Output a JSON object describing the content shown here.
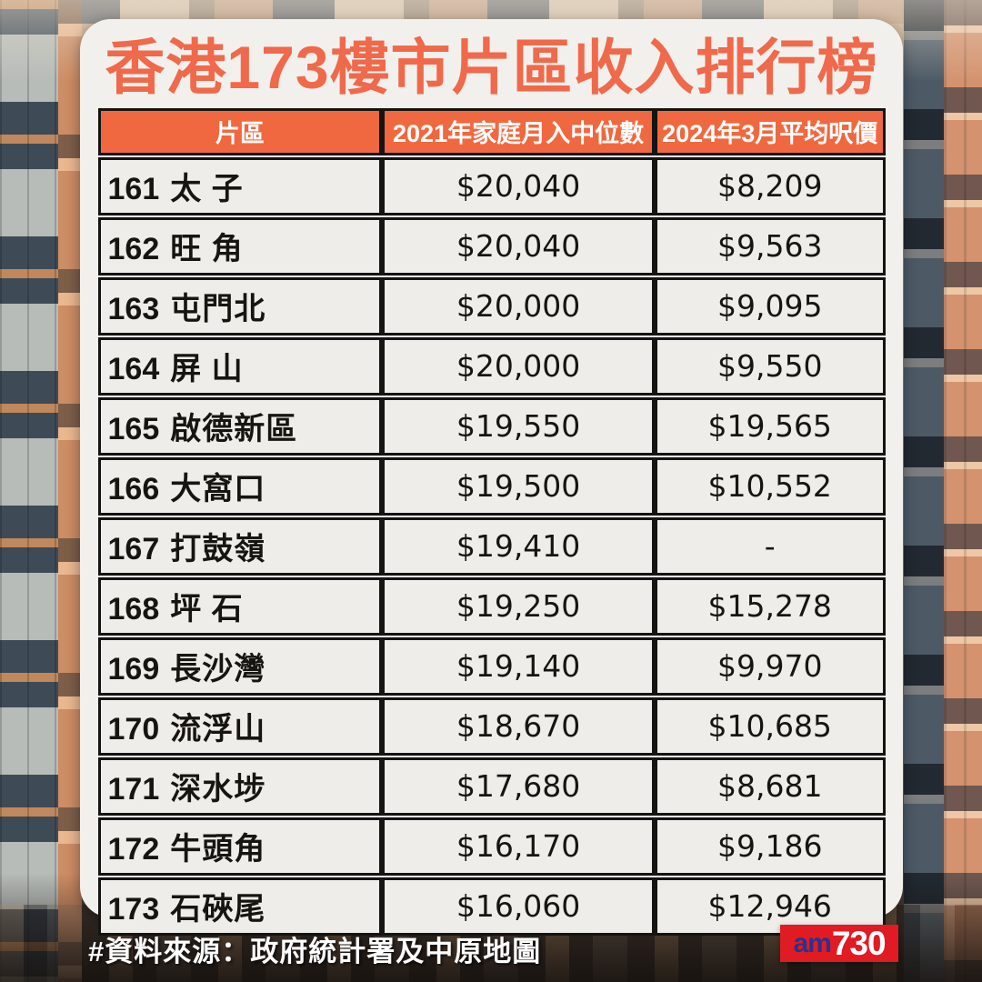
{
  "title": "香港173樓市片區收入排行榜",
  "table": {
    "headers": {
      "district": "片區",
      "income": "2021年家庭月入中位數",
      "price": "2024年3月平均呎價"
    },
    "rows": [
      {
        "rank": "161",
        "district": "太 子",
        "income": "$20,040",
        "price": "$8,209"
      },
      {
        "rank": "162",
        "district": "旺 角",
        "income": "$20,040",
        "price": "$9,563"
      },
      {
        "rank": "163",
        "district": "屯門北",
        "income": "$20,000",
        "price": "$9,095"
      },
      {
        "rank": "164",
        "district": "屏 山",
        "income": "$20,000",
        "price": "$9,550"
      },
      {
        "rank": "165",
        "district": "啟德新區",
        "income": "$19,550",
        "price": "$19,565"
      },
      {
        "rank": "166",
        "district": "大窩口",
        "income": "$19,500",
        "price": "$10,552"
      },
      {
        "rank": "167",
        "district": "打鼓嶺",
        "income": "$19,410",
        "price": "-"
      },
      {
        "rank": "168",
        "district": "坪 石",
        "income": "$19,250",
        "price": "$15,278"
      },
      {
        "rank": "169",
        "district": "長沙灣",
        "income": "$19,140",
        "price": "$9,970"
      },
      {
        "rank": "170",
        "district": "流浮山",
        "income": "$18,670",
        "price": "$10,685"
      },
      {
        "rank": "171",
        "district": "深水埗",
        "income": "$17,680",
        "price": "$8,681"
      },
      {
        "rank": "172",
        "district": "牛頭角",
        "income": "$16,170",
        "price": "$9,186"
      },
      {
        "rank": "173",
        "district": "石硤尾",
        "income": "$16,060",
        "price": "$12,946"
      }
    ]
  },
  "footer": {
    "source": "#資料來源：政府統計署及中原地圖"
  },
  "logo": {
    "prefix": "am",
    "suffix": "730"
  },
  "colors": {
    "title_orange": "#F0694A",
    "header_bg": "#F0683F",
    "card_bg": "#F2F0EC",
    "cell_bg": "#EFEDE9",
    "border_black": "#151412",
    "logo_red": "#E11B23",
    "logo_blue": "#27338F"
  }
}
